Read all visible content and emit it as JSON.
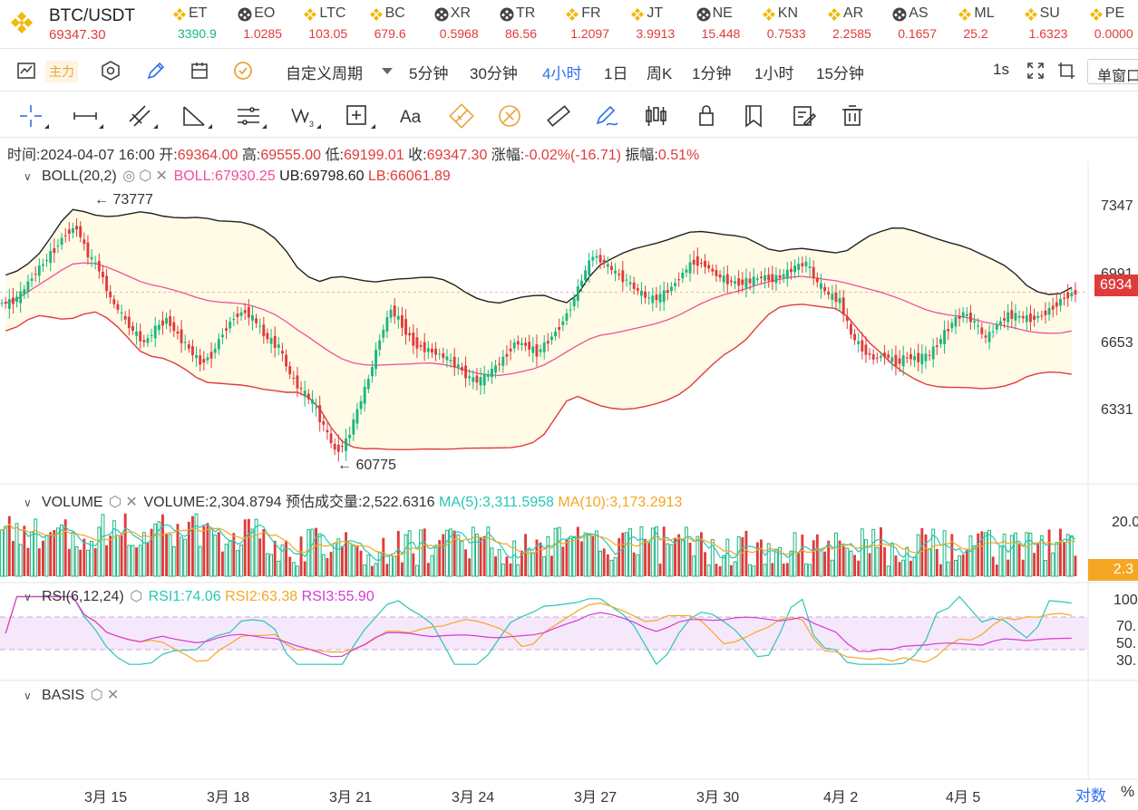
{
  "main_symbol": {
    "name": "BTC/USDT",
    "price": "69347.30",
    "logo_icon": "binance-logo-icon"
  },
  "tickers": [
    {
      "sym": "ET",
      "price": "3390.9",
      "color": "#1ab77f",
      "icon": "binance-logo-icon"
    },
    {
      "sym": "EO",
      "price": "1.0285",
      "color": "#e03b3b",
      "icon": "binance-badge-icon"
    },
    {
      "sym": "LTC",
      "price": "103.05",
      "color": "#e03b3b",
      "icon": "binance-logo-icon"
    },
    {
      "sym": "BC",
      "price": "679.6",
      "color": "#e03b3b",
      "icon": "binance-logo-icon"
    },
    {
      "sym": "XR",
      "price": "0.5968",
      "color": "#e03b3b",
      "icon": "binance-badge-icon"
    },
    {
      "sym": "TR",
      "price": "86.56",
      "color": "#e03b3b",
      "icon": "binance-badge-icon"
    },
    {
      "sym": "FR",
      "price": "1.2097",
      "color": "#e03b3b",
      "icon": "binance-logo-icon"
    },
    {
      "sym": "JT",
      "price": "3.9913",
      "color": "#e03b3b",
      "icon": "binance-logo-icon"
    },
    {
      "sym": "NE",
      "price": "15.448",
      "color": "#e03b3b",
      "icon": "binance-badge-icon"
    },
    {
      "sym": "KN",
      "price": "0.7533",
      "color": "#e03b3b",
      "icon": "binance-logo-icon"
    },
    {
      "sym": "AR",
      "price": "2.2585",
      "color": "#e03b3b",
      "icon": "binance-logo-icon"
    },
    {
      "sym": "AS",
      "price": "0.1657",
      "color": "#e03b3b",
      "icon": "binance-badge-icon"
    },
    {
      "sym": "ML",
      "price": "25.2",
      "color": "#e03b3b",
      "icon": "binance-logo-icon"
    },
    {
      "sym": "SU",
      "price": "1.6323",
      "color": "#e03b3b",
      "icon": "binance-logo-icon"
    },
    {
      "sym": "PE",
      "price": "0.0000",
      "color": "#e03b3b",
      "icon": "binance-logo-icon"
    }
  ],
  "toolbar1": {
    "main_tag": "主力",
    "period_custom": "自定义周期",
    "periods": [
      "5分钟",
      "30分钟",
      "4小时",
      "1日",
      "周K",
      "1分钟",
      "1小时",
      "15分钟"
    ],
    "active_period": "4小时",
    "refresh": "1s",
    "single_window": "单窗口"
  },
  "toolbar2": {
    "tools": [
      "crosshair-icon",
      "horizontal-line-icon",
      "parallel-channel-icon",
      "angle-icon",
      "fib-lines-icon",
      "wave-icon",
      "measure-box-icon",
      "text-tool-icon",
      "pattern-icon",
      "pattern-alt-icon",
      "ruler-icon",
      "pen-icon",
      "candle-pair-icon",
      "lock-icon",
      "magnet-icon",
      "edit-note-icon",
      "trash-icon"
    ],
    "text_tool_label": "Aa"
  },
  "info": {
    "time_label": "时间:",
    "time": "2024-04-07 16:00",
    "open_label": "开:",
    "open": "69364.00",
    "high_label": "高:",
    "high": "69555.00",
    "low_label": "低:",
    "low": "69199.01",
    "close_label": "收:",
    "close": "69347.30",
    "change_label": "涨幅:",
    "change": "-0.02%(-16.71)",
    "amp_label": "振幅:",
    "amp": "0.51%"
  },
  "panes": {
    "boll": {
      "name": "BOLL(20,2)",
      "boll": "BOLL:67930.25",
      "ub": "UB:69798.60",
      "lb": "LB:66061.89",
      "boll_color": "#ef4f9a",
      "ub_color": "#222222",
      "lb_color": "#e03b3b"
    },
    "volume": {
      "name": "VOLUME",
      "vol": "VOLUME:2,304.8794",
      "est": "预估成交量:2,522.6316",
      "ma5": "MA(5):3,311.5958",
      "ma10": "MA(10):3,173.2913",
      "ma5_color": "#28c7b6",
      "ma10_color": "#f5a623"
    },
    "rsi": {
      "name": "RSI(6,12,24)",
      "rsi1": "RSI1:74.06",
      "rsi2": "RSI2:63.38",
      "rsi3": "RSI3:55.90",
      "rsi1_color": "#28c7b6",
      "rsi2_color": "#f5a623",
      "rsi3_color": "#d63ad6"
    },
    "basis": {
      "name": "BASIS"
    }
  },
  "annotations": {
    "high_mark": "73777",
    "low_mark": "60775"
  },
  "y_axis": {
    "price_ticks": [
      "7347",
      "6991",
      "6653",
      "6331"
    ],
    "price_tag": "6934",
    "price_tag_color": "#e03b3b",
    "volume_ticks": [
      "20.0"
    ],
    "volume_tag": "2.3",
    "volume_tag_color": "#f5a623",
    "rsi_ticks": [
      "100",
      "70.",
      "50.",
      "30."
    ]
  },
  "x_axis": {
    "labels": [
      "3月 15",
      "3月 18",
      "3月 21",
      "3月 24",
      "3月 27",
      "3月 30",
      "4月 2",
      "4月 5"
    ],
    "log_label": "对数",
    "pct_label": "%"
  },
  "colors": {
    "up": "#1ab77f",
    "down": "#e03b3b",
    "band_fill": "#fffbe6",
    "rsi_band": "#f6e8fb",
    "accent": "#2e6ff2"
  },
  "chart_data": {
    "type": "candlestick",
    "title": "BTC/USDT",
    "interval": "4小时",
    "ylim": [
      60000,
      75000
    ],
    "x_labels": [
      "3月 15",
      "3月 18",
      "3月 21",
      "3月 24",
      "3月 27",
      "3月 30",
      "4月 2",
      "4月 5"
    ],
    "close_series": [
      68800,
      69200,
      70100,
      70800,
      71500,
      72300,
      72600,
      71200,
      70500,
      69000,
      68200,
      67400,
      66800,
      67500,
      68000,
      67200,
      66500,
      65800,
      66200,
      67300,
      68100,
      68400,
      67800,
      67000,
      66600,
      65200,
      64400,
      63800,
      62600,
      61400,
      61800,
      63400,
      65000,
      67000,
      68500,
      67700,
      66800,
      66500,
      66300,
      66000,
      65600,
      65000,
      64900,
      65400,
      66000,
      66800,
      66700,
      66300,
      66900,
      67600,
      68600,
      70000,
      71200,
      70800,
      70300,
      69900,
      69400,
      69000,
      69100,
      69600,
      70300,
      70900,
      70700,
      70200,
      69900,
      69800,
      69900,
      70100,
      70000,
      70200,
      70600,
      70800,
      69800,
      69200,
      68900,
      67200,
      66500,
      66000,
      66200,
      65800,
      66100,
      66000,
      66200,
      67000,
      67800,
      68300,
      67800,
      67000,
      67700,
      68200,
      68100,
      68000,
      68200,
      68600,
      69100,
      69347
    ],
    "boll": {
      "mid": "BOLL:67930.25",
      "ub": "UB:69798.60",
      "lb": "LB:66061.89"
    },
    "volume": {
      "latest": 2304.8794,
      "ma5": 3311.5958,
      "ma10": 3173.2913,
      "ylim": [
        0,
        20
      ]
    },
    "rsi": {
      "rsi1": 74.06,
      "rsi2": 63.38,
      "rsi3": 55.9,
      "ylim": [
        0,
        100
      ],
      "band": [
        30,
        70
      ]
    },
    "annotations": {
      "high": 73777,
      "low": 60775
    }
  }
}
